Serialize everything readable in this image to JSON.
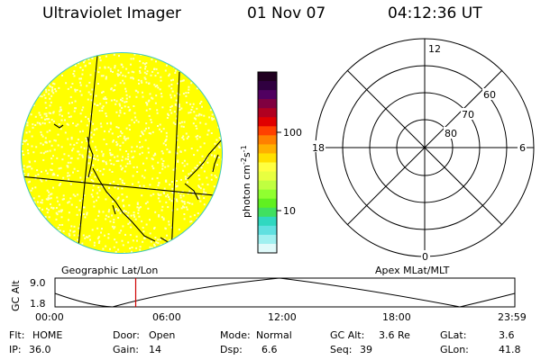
{
  "header": {
    "title": "Ultraviolet Imager",
    "date": "01 Nov 07",
    "time": "04:12:36 UT"
  },
  "image_panel": {
    "fill_color": "#ffff00",
    "speckle_color": "#ffffc0",
    "limb_color": "#40c8c0"
  },
  "colorbar": {
    "unit_label": "photon cm",
    "unit_sup1": "-2",
    "unit_mid": "s",
    "unit_sup2": "-1",
    "ticks": [
      "100",
      "10"
    ],
    "colors": [
      "#200020",
      "#300040",
      "#500060",
      "#800040",
      "#b00020",
      "#e00000",
      "#ff4000",
      "#ff8000",
      "#ffb000",
      "#ffe000",
      "#ffff40",
      "#e8ff40",
      "#c0ff40",
      "#90ff30",
      "#60f020",
      "#40e060",
      "#30d8c0",
      "#60e0e0",
      "#a0f0f0",
      "#e0fafa"
    ]
  },
  "polar_plot": {
    "labels": {
      "top": "12",
      "left": "18",
      "right": "6",
      "bottom": "0"
    },
    "rings": [
      "60",
      "70",
      "80"
    ]
  },
  "timeline": {
    "y_axis_label": "GC Alt",
    "y_ticks": [
      "9.0",
      "1.8"
    ],
    "left_caption": "Geographic Lat/Lon",
    "right_caption": "Apex MLat/MLT",
    "x_ticks": [
      "00:00",
      "06:00",
      "12:00",
      "18:00",
      "23:59"
    ],
    "marker_time_hours": 4.21,
    "marker_color": "#d00000"
  },
  "footer": {
    "row1": [
      {
        "key": "Flt:",
        "value": "HOME"
      },
      {
        "key": "Door:",
        "value": "Open"
      },
      {
        "key": "Mode:",
        "value": "Normal"
      },
      {
        "key": "GC Alt:",
        "value": "3.6 Re"
      },
      {
        "key": "GLat:",
        "value": "3.6"
      }
    ],
    "row2": [
      {
        "key": "IP:",
        "value": "36.0"
      },
      {
        "key": "Gain:",
        "value": "14"
      },
      {
        "key": "Dsp:",
        "value": "6.6"
      },
      {
        "key": "Seq:",
        "value": "39"
      },
      {
        "key": "GLon:",
        "value": "41.8"
      }
    ]
  }
}
